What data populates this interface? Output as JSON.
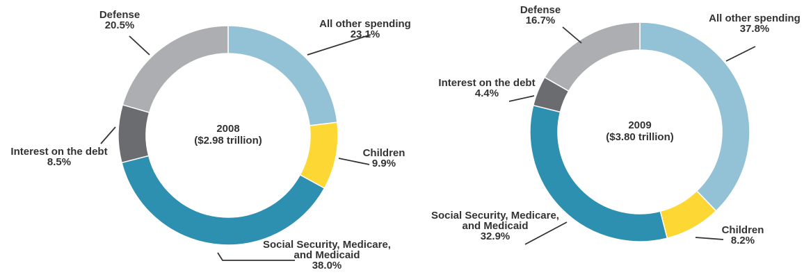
{
  "chart_data": [
    {
      "type": "pie",
      "center_label": [
        "2008",
        "($2.98 trillion)"
      ],
      "slices": [
        {
          "label": [
            "All other spending"
          ],
          "value": 23.1,
          "display": "23.1%",
          "color": "#93c1d6"
        },
        {
          "label": [
            "Children"
          ],
          "value": 9.9,
          "display": "9.9%",
          "color": "#fdd835"
        },
        {
          "label": [
            "Social Security, Medicare,",
            "and Medicaid"
          ],
          "value": 38.0,
          "display": "38.0%",
          "color": "#2e90b0"
        },
        {
          "label": [
            "Interest on the debt"
          ],
          "value": 8.5,
          "display": "8.5%",
          "color": "#6b6c70"
        },
        {
          "label": [
            "Defense"
          ],
          "value": 20.5,
          "display": "20.5%",
          "color": "#acaeb1"
        }
      ]
    },
    {
      "type": "pie",
      "center_label": [
        "2009",
        "($3.80 trillion)"
      ],
      "slices": [
        {
          "label": [
            "All other spending"
          ],
          "value": 37.8,
          "display": "37.8%",
          "color": "#93c1d6"
        },
        {
          "label": [
            "Children"
          ],
          "value": 8.2,
          "display": "8.2%",
          "color": "#fdd835"
        },
        {
          "label": [
            "Social Security, Medicare,",
            "and Medicaid"
          ],
          "value": 32.9,
          "display": "32.9%",
          "color": "#2e90b0"
        },
        {
          "label": [
            "Interest on the debt"
          ],
          "value": 4.4,
          "display": "4.4%",
          "color": "#6b6c70"
        },
        {
          "label": [
            "Defense"
          ],
          "value": 16.7,
          "display": "16.7%",
          "color": "#acaeb1"
        }
      ]
    }
  ]
}
